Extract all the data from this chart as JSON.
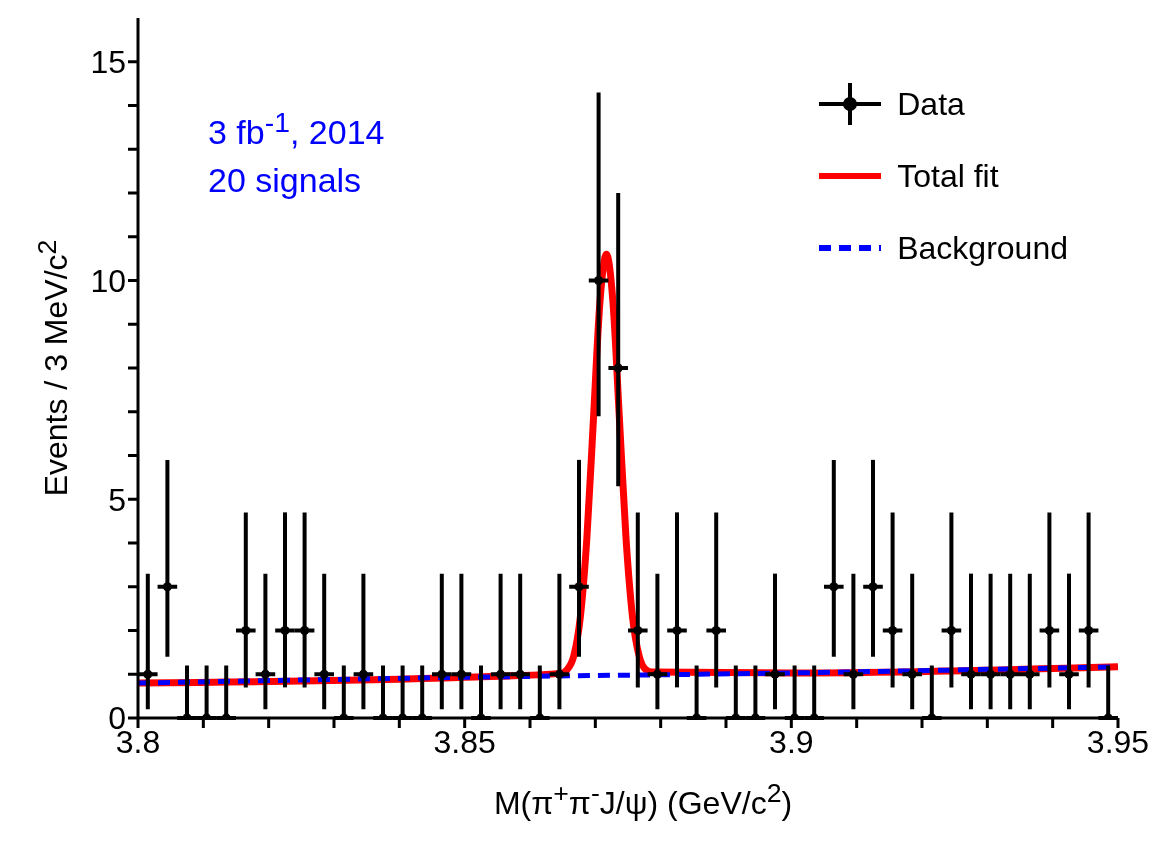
{
  "chart_data": {
    "type": "scatter",
    "xlabel": "M(π$^{+}$π$^{-}$J/ψ) (GeV/c$^{2}$)",
    "ylabel": "Events / 3 MeV/c$^{2}$",
    "annotations": [
      "3 fb$^{-1}$, 2014",
      "20 signals"
    ],
    "xlim": [
      3.8,
      3.95
    ],
    "xticks": [
      3.8,
      {
        "value": 3.81,
        "label": null
      },
      {
        "value": 3.82,
        "label": null
      },
      {
        "value": 3.83,
        "label": null
      },
      {
        "value": 3.84,
        "label": null
      },
      3.85,
      {
        "value": 3.86,
        "label": null
      },
      {
        "value": 3.87,
        "label": null
      },
      {
        "value": 3.88,
        "label": null
      },
      {
        "value": 3.89,
        "label": null
      },
      3.9,
      {
        "value": 3.91,
        "label": null
      },
      {
        "value": 3.92,
        "label": null
      },
      {
        "value": 3.93,
        "label": null
      },
      {
        "value": 3.94,
        "label": null
      },
      3.95
    ],
    "ylim": [
      0,
      16
    ],
    "yticks": [
      0,
      {
        "value": 1,
        "label": null
      },
      {
        "value": 2,
        "label": null
      },
      {
        "value": 3,
        "label": null
      },
      {
        "value": 4,
        "label": null
      },
      5,
      {
        "value": 6,
        "label": null
      },
      {
        "value": 7,
        "label": null
      },
      {
        "value": 8,
        "label": null
      },
      {
        "value": 9,
        "label": null
      },
      10,
      {
        "value": 11,
        "label": null
      },
      {
        "value": 12,
        "label": null
      },
      {
        "value": 13,
        "label": null
      },
      {
        "value": 14,
        "label": null
      },
      15
    ],
    "legend": "top right",
    "series": [
      {
        "name": "Data",
        "color": "#000000",
        "marker": "circle",
        "x": [
          3.8015,
          3.8045,
          3.8075,
          3.8105,
          3.8135,
          3.8165,
          3.8195,
          3.8225,
          3.8255,
          3.8285,
          3.8315,
          3.8345,
          3.8375,
          3.8405,
          3.8435,
          3.8465,
          3.8495,
          3.8525,
          3.8555,
          3.8585,
          3.8615,
          3.8645,
          3.8675,
          3.8705,
          3.8735,
          3.8765,
          3.8795,
          3.8825,
          3.8855,
          3.8885,
          3.8915,
          3.8945,
          3.8975,
          3.9005,
          3.9035,
          3.9065,
          3.9095,
          3.9125,
          3.9155,
          3.9185,
          3.9215,
          3.9245,
          3.9275,
          3.9305,
          3.9335,
          3.9365,
          3.9395,
          3.9425,
          3.9455,
          3.9485
        ],
        "values": [
          1,
          3,
          0,
          0,
          0,
          2,
          1,
          2,
          2,
          1,
          0,
          1,
          0,
          0,
          0,
          1,
          1,
          0,
          1,
          1,
          0,
          1,
          3,
          10,
          8,
          2,
          1,
          2,
          0,
          2,
          0,
          0,
          1,
          0,
          0,
          3,
          1,
          3,
          2,
          1,
          0,
          2,
          1,
          1,
          1,
          1,
          2,
          1,
          2,
          0
        ],
        "errors": [
          [
            0.2,
            3.3
          ],
          [
            1.4,
            5.9
          ],
          [
            0,
            1.2
          ],
          [
            0,
            1.2
          ],
          [
            0,
            1.2
          ],
          [
            0.7,
            4.7
          ],
          [
            0.2,
            3.3
          ],
          [
            0.7,
            4.7
          ],
          [
            0.7,
            4.7
          ],
          [
            0.2,
            3.3
          ],
          [
            0,
            1.2
          ],
          [
            0.2,
            3.3
          ],
          [
            0,
            1.2
          ],
          [
            0,
            1.2
          ],
          [
            0,
            1.2
          ],
          [
            0.2,
            3.3
          ],
          [
            0.2,
            3.3
          ],
          [
            0,
            1.2
          ],
          [
            0.2,
            3.3
          ],
          [
            0.2,
            3.3
          ],
          [
            0,
            1.2
          ],
          [
            0.2,
            3.3
          ],
          [
            1.4,
            5.9
          ],
          [
            6.9,
            14.3
          ],
          [
            5.3,
            12
          ],
          [
            0.7,
            4.7
          ],
          [
            0.2,
            3.3
          ],
          [
            0.7,
            4.7
          ],
          [
            0,
            1.2
          ],
          [
            0.7,
            4.7
          ],
          [
            0,
            1.2
          ],
          [
            0,
            1.2
          ],
          [
            0.2,
            3.3
          ],
          [
            0,
            1.2
          ],
          [
            0,
            1.2
          ],
          [
            1.4,
            5.9
          ],
          [
            0.2,
            3.3
          ],
          [
            1.4,
            5.9
          ],
          [
            0.7,
            4.7
          ],
          [
            0.2,
            3.3
          ],
          [
            0,
            1.2
          ],
          [
            0.7,
            4.7
          ],
          [
            0.2,
            3.3
          ],
          [
            0.2,
            3.3
          ],
          [
            0.2,
            3.3
          ],
          [
            0.2,
            3.3
          ],
          [
            0.7,
            4.7
          ],
          [
            0.2,
            3.3
          ],
          [
            0.7,
            4.7
          ],
          [
            0,
            1.2
          ]
        ],
        "xerrors": [
          0.0015,
          0.0015,
          0.0015,
          0.0015,
          0.0015,
          0.0015,
          0.0015,
          0.0015,
          0.0015,
          0.0015,
          0.0015,
          0.0015,
          0.0015,
          0.0015,
          0.0015,
          0.0015,
          0.0015,
          0.0015,
          0.0015,
          0.0015,
          0.0015,
          0.0015,
          0.0015,
          0.0015,
          0.0015,
          0.0015,
          0.0015,
          0.0015,
          0.0015,
          0.0015,
          0.0015,
          0.0015,
          0.0015,
          0.0015,
          0.0015,
          0.0015,
          0.0015,
          0.0015,
          0.0015,
          0.0015,
          0.0015,
          0.0015,
          0.0015,
          0.0015,
          0.0015,
          0.0015,
          0.0015,
          0.0015,
          0.0015,
          0.0015
        ]
      },
      {
        "name": "Total fit",
        "type": "line",
        "color": "#ff0000",
        "line_style": "solid",
        "x": [
          3.8,
          3.85,
          3.8647,
          3.8657,
          3.8667,
          3.8677,
          3.8687,
          3.8697,
          3.8707,
          3.8717,
          3.8727,
          3.8737,
          3.8747,
          3.8757,
          3.8767,
          3.8777,
          3.8787,
          3.9,
          3.95
        ],
        "values": [
          0.8,
          0.93,
          1.02,
          1.11,
          1.42,
          2.3,
          4.1,
          6.8,
          9.5,
          10.6,
          9.5,
          6.8,
          4.1,
          2.3,
          1.42,
          1.11,
          1.05,
          1.03,
          1.17
        ]
      },
      {
        "name": "Background",
        "type": "line",
        "color": "#0000ff",
        "line_style": "dashed",
        "x": [
          3.8,
          3.85,
          3.9,
          3.95
        ],
        "values": [
          0.8,
          0.93,
          1.03,
          1.17
        ]
      }
    ]
  }
}
